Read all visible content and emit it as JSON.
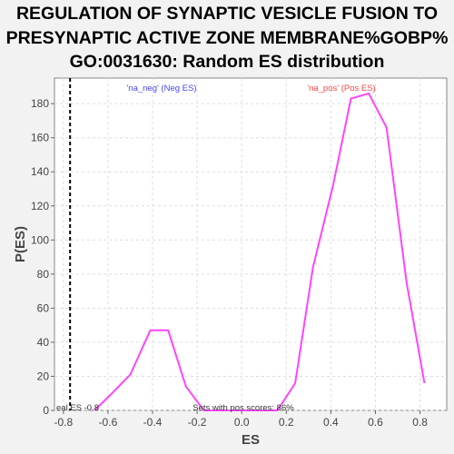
{
  "chart_data": {
    "type": "line",
    "title_lines": [
      "REGULATION OF SYNAPTIC VESICLE FUSION TO",
      "PRESYNAPTIC ACTIVE ZONE MEMBRANE%GOBP%",
      "GO:0031630: Random ES distribution"
    ],
    "xlabel": "ES",
    "ylabel": "P(ES)",
    "xlim": [
      -0.84,
      0.92
    ],
    "ylim": [
      0,
      195
    ],
    "xticks": [
      -0.8,
      -0.6,
      -0.4,
      -0.2,
      0.0,
      0.2,
      0.4,
      0.6,
      0.8
    ],
    "xtick_labels": [
      "-0.8",
      "-0.6",
      "-0.4",
      "-0.2",
      "0.0",
      "0.2",
      "0.4",
      "0.6",
      "0.8"
    ],
    "yticks": [
      0,
      20,
      40,
      60,
      80,
      100,
      120,
      140,
      160,
      180
    ],
    "grid": true,
    "line_color": "#ff44ff",
    "series": [
      {
        "x": [
          -0.66,
          -0.59,
          -0.5,
          -0.41,
          -0.33,
          -0.25,
          -0.17,
          -0.09,
          0.0,
          0.08,
          0.16,
          0.24,
          0.32,
          0.41,
          0.49,
          0.57,
          0.65,
          0.74,
          0.82
        ],
        "y": [
          0,
          9,
          21,
          47,
          47,
          14,
          0,
          0,
          0,
          0,
          0,
          16,
          84,
          132,
          183,
          186,
          166,
          75,
          16
        ]
      }
    ],
    "real_es": -0.77,
    "annotations": {
      "neg": "'na_neg' (Neg ES)",
      "pos": "'na_pos' (Pos ES)",
      "real_es": "eal ES -0.8",
      "pos_scores": "Sets with pos scores: 86%"
    },
    "colors": {
      "neg": "#4444ff",
      "pos": "#ff4444",
      "real_line": "#000000"
    }
  }
}
